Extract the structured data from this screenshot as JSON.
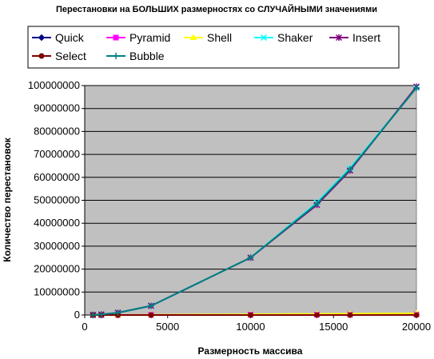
{
  "chart_data": {
    "type": "line",
    "title": "Перестановки на БОЛЬШИХ размерностях со СЛУЧАЙНЫМИ значениями",
    "xlabel": "Размерность массива",
    "ylabel": "Количество перестановок",
    "xlim": [
      0,
      20000
    ],
    "ylim": [
      0,
      100000000
    ],
    "xticks": [
      0,
      5000,
      10000,
      15000,
      20000
    ],
    "yticks": [
      0,
      10000000,
      20000000,
      30000000,
      40000000,
      50000000,
      60000000,
      70000000,
      80000000,
      90000000,
      100000000
    ],
    "grid": "horizontal",
    "plot_background": "#c0c0c0",
    "legend_position": "top",
    "x": [
      500,
      1000,
      2000,
      4000,
      10000,
      14000,
      16000,
      20000
    ],
    "series": [
      {
        "name": "Quick",
        "color": "#000080",
        "marker": "diamond",
        "values": [
          1500,
          3300,
          7000,
          15000,
          42000,
          60000,
          70000,
          90000
        ]
      },
      {
        "name": "Pyramid",
        "color": "#ff00ff",
        "marker": "square",
        "values": [
          4200,
          9200,
          20000,
          44000,
          120000,
          175000,
          200000,
          255000
        ]
      },
      {
        "name": "Shell",
        "color": "#ffff00",
        "marker": "triangle",
        "values": [
          8000,
          20000,
          45000,
          110000,
          320000,
          480000,
          560000,
          720000
        ]
      },
      {
        "name": "Shaker",
        "color": "#00ffff",
        "marker": "x",
        "values": [
          62000,
          250000,
          1000000,
          4000000,
          25000000,
          49000000,
          64000000,
          99000000
        ]
      },
      {
        "name": "Insert",
        "color": "#800080",
        "marker": "asterisk",
        "values": [
          62000,
          250000,
          1000000,
          4000000,
          25000000,
          48000000,
          63000000,
          99500000
        ]
      },
      {
        "name": "Select",
        "color": "#800000",
        "marker": "circle",
        "values": [
          500,
          1000,
          2000,
          4000,
          10000,
          14000,
          16000,
          20000
        ]
      },
      {
        "name": "Bubble",
        "color": "#008080",
        "marker": "plus",
        "values": [
          62000,
          250000,
          1000000,
          4000000,
          25000000,
          48500000,
          63500000,
          99000000
        ]
      }
    ]
  }
}
